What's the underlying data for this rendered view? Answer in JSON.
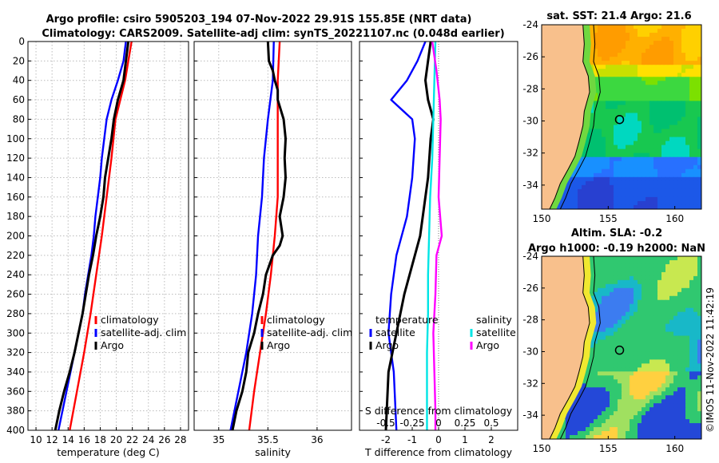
{
  "title": {
    "line1": "Argo profile: csiro 5905203_194 07-Nov-2022 29.91S 155.85E (NRT data)",
    "line2": "Climatology: CARS2009. Satellite-adj clim: synTS_20221107.nc (0.048d earlier)"
  },
  "copyright": "©IMOS 11-Nov-2022 11:42:19",
  "colors": {
    "clim": "#ff0000",
    "sat": "#0000ff",
    "argo": "#000000",
    "sal_sat": "#00e5e5",
    "sal_argo": "#ff00ff",
    "land": "#f8c08c"
  },
  "chart_data": [
    {
      "type": "line",
      "name": "temperature-profile",
      "xlabel": "temperature (deg C)",
      "xlim": [
        9,
        29
      ],
      "xticks": [
        10,
        12,
        14,
        16,
        18,
        20,
        22,
        24,
        26,
        28
      ],
      "ylim": [
        0,
        400
      ],
      "yticks": [
        0,
        20,
        40,
        60,
        80,
        100,
        120,
        140,
        160,
        180,
        200,
        220,
        240,
        260,
        280,
        300,
        320,
        340,
        360,
        380,
        400
      ],
      "grid": true,
      "legend": [
        "climatology",
        "satellite-adj. clim",
        "Argo"
      ],
      "series": [
        {
          "name": "climatology",
          "color": "clim",
          "depth": [
            0,
            40,
            80,
            120,
            160,
            200,
            240,
            280,
            320,
            360,
            400
          ],
          "values": [
            21.9,
            21.1,
            19.9,
            19.4,
            18.8,
            18.2,
            17.5,
            16.8,
            16.0,
            15.1,
            14.2
          ]
        },
        {
          "name": "satellite-adj. clim",
          "color": "sat",
          "depth": [
            0,
            20,
            40,
            60,
            80,
            100,
            120,
            140,
            160,
            180,
            200,
            220,
            240,
            260,
            280,
            300,
            320,
            340,
            360,
            380,
            400
          ],
          "values": [
            21.2,
            20.9,
            20.2,
            19.4,
            18.8,
            18.5,
            18.2,
            18.0,
            17.7,
            17.4,
            17.2,
            16.9,
            16.5,
            16.1,
            15.8,
            15.3,
            14.8,
            14.3,
            13.8,
            13.3,
            12.8
          ]
        },
        {
          "name": "Argo",
          "color": "argo",
          "depth": [
            0,
            20,
            40,
            60,
            80,
            100,
            120,
            140,
            160,
            180,
            200,
            220,
            240,
            260,
            280,
            300,
            320,
            340,
            360,
            380,
            400
          ],
          "values": [
            21.5,
            21.2,
            20.9,
            20.2,
            19.7,
            19.4,
            19.0,
            18.6,
            18.4,
            18.0,
            17.5,
            17.1,
            16.6,
            16.2,
            15.8,
            15.3,
            14.8,
            14.2,
            13.5,
            12.9,
            12.4
          ]
        }
      ]
    },
    {
      "type": "line",
      "name": "salinity-profile",
      "xlabel": "salinity",
      "xlim": [
        34.75,
        36.35
      ],
      "xticks": [
        35,
        35.5,
        36
      ],
      "ylim": [
        0,
        400
      ],
      "grid": true,
      "legend": [
        "climatology",
        "satellite-adj. clim",
        "Argo"
      ],
      "series": [
        {
          "name": "climatology",
          "color": "clim",
          "depth": [
            0,
            40,
            80,
            120,
            160,
            200,
            240,
            280,
            320,
            360,
            400
          ],
          "values": [
            35.62,
            35.6,
            35.6,
            35.6,
            35.6,
            35.57,
            35.53,
            35.48,
            35.42,
            35.36,
            35.31
          ]
        },
        {
          "name": "satellite-adj. clim",
          "color": "sat",
          "depth": [
            0,
            40,
            80,
            120,
            160,
            200,
            240,
            280,
            320,
            360,
            400
          ],
          "values": [
            35.56,
            35.55,
            35.5,
            35.46,
            35.44,
            35.4,
            35.38,
            35.34,
            35.28,
            35.2,
            35.12
          ]
        },
        {
          "name": "Argo",
          "color": "argo",
          "depth": [
            0,
            20,
            30,
            40,
            50,
            60,
            80,
            100,
            120,
            140,
            160,
            180,
            200,
            210,
            220,
            240,
            260,
            280,
            300,
            320,
            340,
            360,
            380,
            400
          ],
          "values": [
            35.5,
            35.51,
            35.55,
            35.57,
            35.6,
            35.6,
            35.66,
            35.68,
            35.67,
            35.68,
            35.66,
            35.62,
            35.65,
            35.62,
            35.55,
            35.48,
            35.45,
            35.4,
            35.36,
            35.3,
            35.28,
            35.24,
            35.18,
            35.14
          ]
        }
      ]
    },
    {
      "type": "line",
      "name": "difference-profile",
      "xlabel": "T difference from climatology",
      "xlim": [
        -3,
        3
      ],
      "xticks": [
        -2,
        -1,
        0,
        1,
        2
      ],
      "top_axis": {
        "label": "S difference from climatology",
        "ticks": [
          "-0.5",
          "-0.25",
          "0",
          "0.25",
          "0.5"
        ]
      },
      "ylim": [
        0,
        400
      ],
      "grid": false,
      "legend": {
        "temperature_title": "temperature",
        "salinity_title": "salinity",
        "temperature": [
          "satellite",
          "Argo"
        ],
        "salinity": [
          "satellite",
          "Argo"
        ]
      },
      "series": [
        {
          "name": "T satellite",
          "color": "sat",
          "depth": [
            0,
            20,
            40,
            60,
            80,
            100,
            140,
            180,
            220,
            260,
            300,
            340,
            400
          ],
          "values": [
            -0.5,
            -0.8,
            -1.2,
            -1.8,
            -1.0,
            -0.9,
            -1.0,
            -1.2,
            -1.6,
            -1.8,
            -1.9,
            -1.7,
            -1.6
          ]
        },
        {
          "name": "T Argo",
          "color": "argo",
          "depth": [
            0,
            20,
            40,
            60,
            80,
            100,
            140,
            180,
            200,
            220,
            260,
            300,
            340,
            400
          ],
          "values": [
            -0.3,
            -0.4,
            -0.5,
            -0.4,
            -0.2,
            -0.3,
            -0.4,
            -0.6,
            -0.7,
            -0.9,
            -1.3,
            -1.6,
            -1.9,
            -2.0
          ]
        },
        {
          "name": "S satellite",
          "color": "sal_sat",
          "depth": [
            0,
            40,
            80,
            120,
            160,
            200,
            240,
            280,
            320,
            360,
            400
          ],
          "values": [
            -0.03,
            -0.04,
            -0.05,
            -0.06,
            -0.08,
            -0.09,
            -0.1,
            -0.1,
            -0.11,
            -0.11,
            -0.11
          ]
        },
        {
          "name": "S Argo",
          "color": "sal_argo",
          "depth": [
            0,
            30,
            60,
            80,
            120,
            160,
            200,
            220,
            260,
            300,
            340,
            380,
            400
          ],
          "values": [
            -0.06,
            -0.02,
            0.01,
            0.02,
            0.01,
            0.0,
            0.03,
            -0.02,
            -0.03,
            -0.05,
            -0.04,
            -0.03,
            -0.03
          ]
        }
      ]
    },
    {
      "type": "heatmap",
      "name": "sst-map",
      "title": "sat. SST: 21.4 Argo: 21.6",
      "xlim": [
        150,
        162
      ],
      "ylim": [
        -35.5,
        -24
      ],
      "xticks": [
        150,
        155,
        160
      ],
      "yticks": [
        -24,
        -26,
        -28,
        -30,
        -32,
        -34
      ],
      "marker": {
        "lon": 155.85,
        "lat": -29.91
      }
    },
    {
      "type": "heatmap",
      "name": "sla-map",
      "title": "Altim. SLA: -0.2",
      "subtitle": "Argo h1000: -0.19 h2000: NaN",
      "xlim": [
        150,
        162
      ],
      "ylim": [
        -35.5,
        -24
      ],
      "xticks": [
        150,
        155,
        160
      ],
      "yticks": [
        -24,
        -26,
        -28,
        -30,
        -32,
        -34
      ],
      "marker": {
        "lon": 155.85,
        "lat": -29.91
      }
    }
  ]
}
